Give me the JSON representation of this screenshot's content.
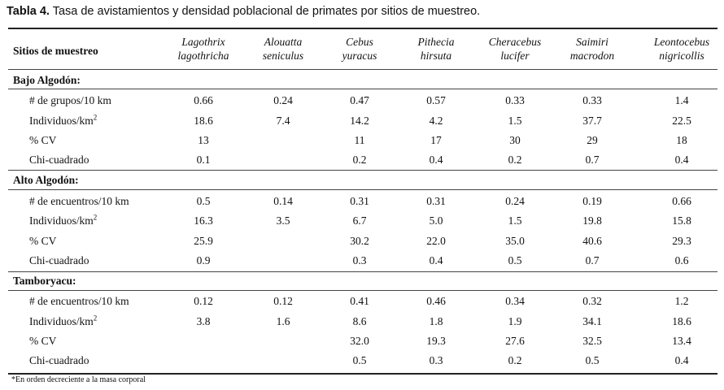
{
  "caption": {
    "lead": "Tabla 4.",
    "text": " Tasa de avistamientos y densidad poblacional de primates por sitios de muestreo."
  },
  "header": {
    "site_label": "Sitios de muestreo",
    "species": [
      {
        "genus": "Lagothrix",
        "epithet": "lagothricha"
      },
      {
        "genus": "Alouatta",
        "epithet": "seniculus"
      },
      {
        "genus": "Cebus",
        "epithet": "yuracus"
      },
      {
        "genus": "Pithecia",
        "epithet": "hirsuta"
      },
      {
        "genus": "Cheracebus",
        "epithet": "lucifer"
      },
      {
        "genus": "Saimiri",
        "epithet": "macrodon"
      },
      {
        "genus": "Leontocebus",
        "epithet": "nigricollis"
      }
    ]
  },
  "sections": [
    {
      "title": "Bajo Algodón:",
      "rows": [
        {
          "label": "# de grupos/10 km",
          "values": [
            "0.66",
            "0.24",
            "0.47",
            "0.57",
            "0.33",
            "0.33",
            "1.4"
          ]
        },
        {
          "label": "Individuos/km",
          "sup": "2",
          "values": [
            "18.6",
            "7.4",
            "14.2",
            "4.2",
            "1.5",
            "37.7",
            "22.5"
          ]
        },
        {
          "label": "% CV",
          "values": [
            "13",
            "",
            "11",
            "17",
            "30",
            "29",
            "18"
          ]
        },
        {
          "label": "Chi-cuadrado",
          "values": [
            "0.1",
            "",
            "0.2",
            "0.4",
            "0.2",
            "0.7",
            "0.4"
          ]
        }
      ]
    },
    {
      "title": "Alto Algodón:",
      "rows": [
        {
          "label": "# de encuentros/10 km",
          "values": [
            "0.5",
            "0.14",
            "0.31",
            "0.31",
            "0.24",
            "0.19",
            "0.66"
          ]
        },
        {
          "label": "Individuos/km",
          "sup": "2",
          "values": [
            "16.3",
            "3.5",
            "6.7",
            "5.0",
            "1.5",
            "19.8",
            "15.8"
          ]
        },
        {
          "label": "% CV",
          "values": [
            "25.9",
            "",
            "30.2",
            "22.0",
            "35.0",
            "40.6",
            "29.3"
          ]
        },
        {
          "label": "Chi-cuadrado",
          "values": [
            "0.9",
            "",
            "0.3",
            "0.4",
            "0.5",
            "0.7",
            "0.6"
          ]
        }
      ]
    },
    {
      "title": "Tamboryacu:",
      "rows": [
        {
          "label": "# de encuentros/10 km",
          "values": [
            "0.12",
            "0.12",
            "0.41",
            "0.46",
            "0.34",
            "0.32",
            "1.2"
          ]
        },
        {
          "label": "Individuos/km",
          "sup": "2",
          "values": [
            "3.8",
            "1.6",
            "8.6",
            "1.8",
            "1.9",
            "34.1",
            "18.6"
          ]
        },
        {
          "label": "% CV",
          "values": [
            "",
            "",
            "32.0",
            "19.3",
            "27.6",
            "32.5",
            "13.4"
          ]
        },
        {
          "label": "Chi-cuadrado",
          "values": [
            "",
            "",
            "0.5",
            "0.3",
            "0.2",
            "0.5",
            "0.4"
          ]
        }
      ]
    }
  ],
  "footnote": "*En orden decreciente a la masa corporal"
}
